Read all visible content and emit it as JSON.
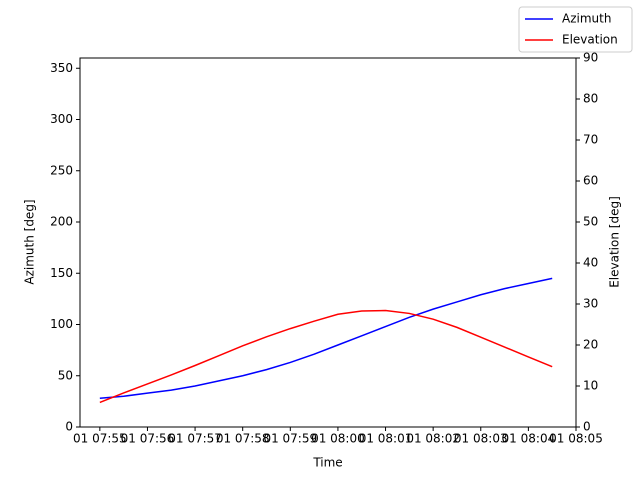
{
  "chart_data": {
    "type": "line",
    "x_label": "Time",
    "y_label": "Azimuth [deg]",
    "y2_label": "Elevation [deg]",
    "x": [
      "07:55:00",
      "07:55:30",
      "07:56:00",
      "07:56:30",
      "07:57:00",
      "07:57:30",
      "07:58:00",
      "07:58:30",
      "07:59:00",
      "07:59:30",
      "08:00:00",
      "08:00:30",
      "08:01:00",
      "08:01:30",
      "08:02:00",
      "08:02:30",
      "08:03:00",
      "08:03:30",
      "08:04:00",
      "08:04:30"
    ],
    "series": [
      {
        "name": "Azimuth",
        "color": "#0000ff",
        "values": [
          28,
          30,
          33,
          36,
          40,
          45,
          50,
          56,
          63,
          71,
          80,
          89,
          98,
          107,
          115,
          122,
          129,
          135,
          140,
          145
        ]
      },
      {
        "name": "Elevation",
        "color": "#ff0000",
        "axis": "y2",
        "values": [
          6,
          8.3,
          10.5,
          12.7,
          15,
          17.4,
          19.8,
          22,
          24,
          25.8,
          27.5,
          28.3,
          28.4,
          27.7,
          26.3,
          24.3,
          21.9,
          19.5,
          17.1,
          14.7
        ]
      }
    ],
    "xlim": [
      "07:54:35",
      "08:05:00"
    ],
    "xticks": [
      {
        "value": "07:55:00",
        "label": "01 07:55"
      },
      {
        "value": "07:56:00",
        "label": "01 07:56"
      },
      {
        "value": "07:57:00",
        "label": "01 07:57"
      },
      {
        "value": "07:58:00",
        "label": "01 07:58"
      },
      {
        "value": "07:59:00",
        "label": "01 07:59"
      },
      {
        "value": "08:00:00",
        "label": "01 08:00"
      },
      {
        "value": "08:01:00",
        "label": "01 08:01"
      },
      {
        "value": "08:02:00",
        "label": "01 08:02"
      },
      {
        "value": "08:03:00",
        "label": "01 08:03"
      },
      {
        "value": "08:04:00",
        "label": "01 08:04"
      },
      {
        "value": "08:05:00",
        "label": "01 08:05"
      }
    ],
    "ylim": [
      0,
      360
    ],
    "yticks": [
      0,
      50,
      100,
      150,
      200,
      250,
      300,
      350
    ],
    "y2lim": [
      0,
      90
    ],
    "y2ticks": [
      0,
      10,
      20,
      30,
      40,
      50,
      60,
      70,
      80,
      90
    ],
    "legend": "upper right"
  }
}
